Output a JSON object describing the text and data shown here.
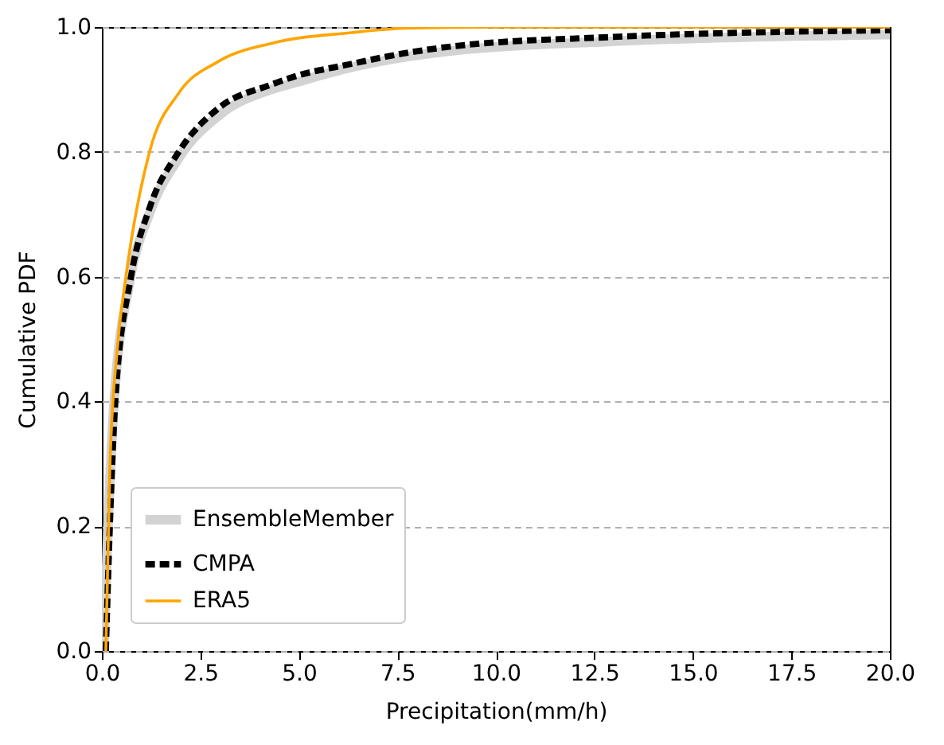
{
  "chart_data": {
    "type": "line",
    "xlabel": "Precipitation(mm/h)",
    "ylabel": "Cumulative PDF",
    "xlim": [
      0,
      20
    ],
    "ylim": [
      0,
      1
    ],
    "xticks": [
      {
        "value": 0,
        "label": "0.0"
      },
      {
        "value": 2.5,
        "label": "2.5"
      },
      {
        "value": 5,
        "label": "5.0"
      },
      {
        "value": 7.5,
        "label": "7.5"
      },
      {
        "value": 10,
        "label": "10.0"
      },
      {
        "value": 12.5,
        "label": "12.5"
      },
      {
        "value": 15,
        "label": "15.0"
      },
      {
        "value": 17.5,
        "label": "17.5"
      },
      {
        "value": 20,
        "label": "20.0"
      }
    ],
    "yticks": [
      {
        "value": 0,
        "label": "0.0"
      },
      {
        "value": 0.2,
        "label": "0.2"
      },
      {
        "value": 0.4,
        "label": "0.4"
      },
      {
        "value": 0.6,
        "label": "0.6"
      },
      {
        "value": 0.8,
        "label": "0.8"
      },
      {
        "value": 1,
        "label": "1.0"
      }
    ],
    "grid": "y",
    "legend": "bottom left",
    "series": [
      {
        "name": "EnsembleMember",
        "color": "#d3d3d3",
        "line_style": "solid",
        "x": [
          0.05,
          0.15,
          0.3,
          0.7,
          1.2,
          1.95,
          3,
          4.3,
          4.85,
          6.3,
          7.7,
          8.9,
          12.9,
          20
        ],
        "values": [
          0,
          0.19,
          0.39,
          0.59,
          0.7,
          0.79,
          0.86,
          0.9,
          0.91,
          0.935,
          0.952,
          0.962,
          0.977,
          0.988
        ]
      },
      {
        "name": "CMPA",
        "color": "#000000",
        "line_style": "dashed",
        "x": [
          0.1,
          0.2,
          0.34,
          0.74,
          1.21,
          1.95,
          2.96,
          4.31,
          4.85,
          6.33,
          7.68,
          8.89,
          12.93,
          20
        ],
        "values": [
          0,
          0.197,
          0.4,
          0.6,
          0.71,
          0.8,
          0.87,
          0.908,
          0.92,
          0.941,
          0.958,
          0.969,
          0.984,
          0.995
        ]
      },
      {
        "name": "ERA5",
        "color": "#ffa500",
        "line_style": "solid",
        "x": [
          0.1,
          0.2,
          0.4,
          0.61,
          1.21,
          1.95,
          2.96,
          4.31,
          6.33,
          7.68,
          10,
          20
        ],
        "values": [
          0,
          0.29,
          0.49,
          0.6,
          0.8,
          0.894,
          0.945,
          0.974,
          0.991,
          0.998,
          1,
          1
        ]
      }
    ]
  }
}
